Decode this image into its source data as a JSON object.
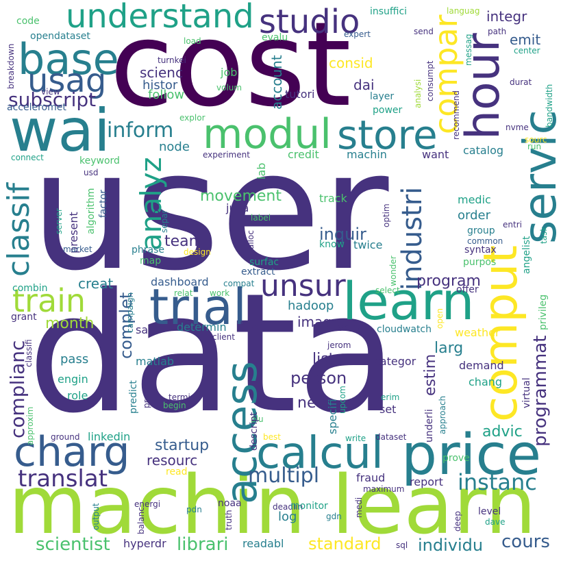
{
  "palette": {
    "dark_purple": "#440154",
    "indigo": "#46327e",
    "blue": "#365c8d",
    "teal": "#277f8e",
    "green_teal": "#1fa187",
    "green": "#4ac16d",
    "lime": "#a0da39",
    "yellow": "#fde725",
    "background": "#ffffff"
  },
  "words": {
    "user": "user",
    "data": "data",
    "cost": "cost",
    "machin_learn": "machin learn",
    "wai": "wai",
    "price": "price",
    "calcul": "calcul",
    "charg": "charg",
    "learn": "learn",
    "trial": "trial",
    "access": "access",
    "comput": "comput",
    "servic": "servic",
    "hour": "hour",
    "compar": "compar",
    "understand": "understand",
    "studio": "studio",
    "base": "base",
    "usag": "usag",
    "modul": "modul",
    "store": "store",
    "train": "train",
    "classif": "classif",
    "analyz": "analyz",
    "unsur": "unsur",
    "industri": "industri",
    "inform": "inform",
    "subscript": "subscript",
    "complianc": "complianc",
    "translat": "translat",
    "instanc": "instanc",
    "multipl": "multipl",
    "scientist": "scientist",
    "librari": "librari",
    "individu": "individu",
    "standard": "standard",
    "cours": "cours",
    "person": "person",
    "inquir": "inquir",
    "program": "program",
    "programmat": "programmat",
    "advic": "advic",
    "startup": "startup",
    "resourc": "resourc",
    "complet": "complet",
    "month": "month",
    "team": "team",
    "movement": "movement",
    "node": "node",
    "scienc": "scienc",
    "histor": "histor",
    "follow": "follow",
    "emit": "emit",
    "integr": "integr",
    "consid": "consid",
    "account": "account",
    "dai": "dai",
    "tutori": "tutori",
    "layer": "layer",
    "power": "power",
    "insuffici": "insuffici",
    "opendataset": "opendataset",
    "code": "code",
    "evalu": "evalu",
    "expert": "expert",
    "send": "send",
    "path": "path",
    "languag": "languag",
    "messag": "messag",
    "load": "load",
    "turnkei": "turnkei",
    "job": "job",
    "view": "view",
    "volum": "volum",
    "acceleromet": "acceleromet",
    "breakdown": "breakdown",
    "analysi": "analysi",
    "consumpt": "consumpt",
    "recommend": "recommend",
    "durat": "durat",
    "center": "center",
    "bandwidth": "bandwidth",
    "explor": "explor",
    "nvme": "nvme",
    "sourc": "sourc",
    "run": "run",
    "catalog": "catalog",
    "want": "want",
    "credit": "credit",
    "machin": "machin",
    "experiment": "experiment",
    "lab": "lab",
    "keyword": "keyword",
    "connect": "connect",
    "usd": "usd",
    "algorithm": "algorithm",
    "factor": "factor",
    "present": "present",
    "track": "track",
    "medic": "medic",
    "order": "order",
    "group": "group",
    "common": "common",
    "entri": "entri",
    "task": "task",
    "angelist": "angelist",
    "julia": "julia",
    "optim": "optim",
    "alloc": "alloc",
    "know": "know",
    "twice": "twice",
    "syntax": "syntax",
    "purpos": "purpos",
    "separ": "separ",
    "row": "row",
    "label": "label",
    "phrase": "phrase",
    "design": "design",
    "market": "market",
    "server": "server",
    "map": "map",
    "surfac": "surfac",
    "extract": "extract",
    "creat": "creat",
    "combin": "combin",
    "dashboard": "dashboard",
    "compat": "compat",
    "campaign": "campaign",
    "relat": "relat",
    "work": "work",
    "hadoop": "hadoop",
    "imag": "imag",
    "select": "select",
    "wonder": "wonder",
    "offer": "offer",
    "privileg": "privileg",
    "grant": "grant",
    "classifi": "classifi",
    "sale": "sale",
    "determin": "determin",
    "host": "host",
    "versu": "versu",
    "cloudwatch": "cloudwatch",
    "weather": "weather",
    "open": "open",
    "client": "client",
    "jerom": "jerom",
    "larg": "larg",
    "pass": "pass",
    "matlab": "matlab",
    "list": "list",
    "categor": "categor",
    "demand": "demand",
    "estim": "estim",
    "chang": "chang",
    "virtual": "virtual",
    "engin": "engin",
    "role": "role",
    "predict": "predict",
    "proport": "proport",
    "termin": "termin",
    "begin": "begin",
    "net": "net",
    "specifi": "specifi",
    "upcom": "upcom",
    "erim": "erim",
    "set": "set",
    "underli": "underli",
    "approach": "approach",
    "approxim": "approxim",
    "ground": "ground",
    "linkedin": "linkedin",
    "plu": "plu",
    "descript": "descript",
    "best": "best",
    "write": "write",
    "dataset": "dataset",
    "prove": "prove",
    "read": "read",
    "log": "log",
    "fraud": "fraud",
    "report": "report",
    "energi": "energi",
    "noaa": "noaa",
    "deadlin": "deadlin",
    "maximum": "maximum",
    "output": "output",
    "balanc": "balanc",
    "pdn": "pdn",
    "truth": "truth",
    "monitor": "monitor",
    "gdn": "gdn",
    "medi": "medi",
    "deep": "deep",
    "level": "level",
    "dave": "dave",
    "hyperdr": "hyperdr",
    "readabl": "readabl",
    "sql": "sql"
  }
}
